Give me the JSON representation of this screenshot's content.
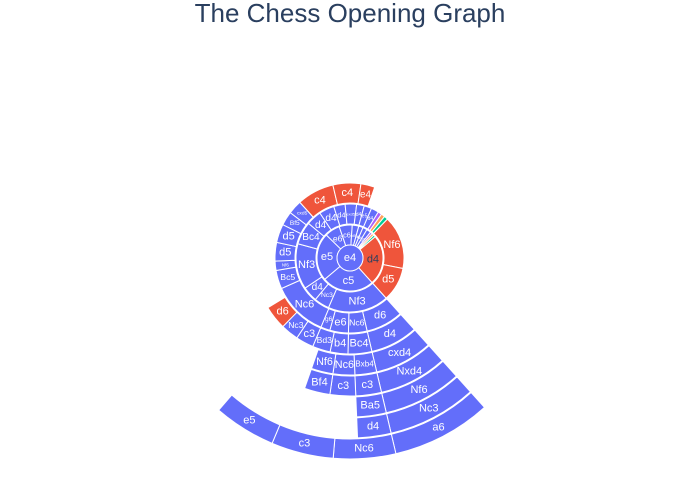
{
  "title": "The Chess Opening Graph",
  "chart_data": {
    "type": "sunburst",
    "title": "The Chess Opening Graph",
    "colors": {
      "white_first": "#636efa",
      "black_first": "#ef553b",
      "teal": "#00cc96",
      "orange": "#ffa15a",
      "cyan": "#19d3f3",
      "purple": "#ab63fa"
    },
    "root": "e4",
    "rings": [
      [
        {
          "label": "c5",
          "value": 24,
          "color": "white_first"
        },
        {
          "label": "e5",
          "value": 22,
          "color": "white_first"
        },
        {
          "label": "e6",
          "value": 7,
          "color": "white_first"
        },
        {
          "label": "c6",
          "value": 6,
          "color": "white_first"
        },
        {
          "label": "d5",
          "value": 3,
          "color": "white_first"
        },
        {
          "label": "d6",
          "value": 2,
          "color": "white_first"
        },
        {
          "label": "Nf6",
          "value": 2,
          "color": "white_first"
        },
        {
          "label": "g6",
          "value": 2,
          "color": "white_first"
        },
        {
          "label": "",
          "value": 1,
          "color": "purple"
        },
        {
          "label": "",
          "value": 1,
          "color": "orange"
        },
        {
          "label": "",
          "value": 1,
          "color": "teal"
        },
        {
          "label": "d4",
          "value": 23,
          "color": "black_first"
        }
      ],
      [
        {
          "label": "Nf3",
          "value": 16,
          "color": "white_first"
        },
        {
          "label": "Nc3",
          "value": 4,
          "color": "white_first"
        },
        {
          "label": "d4",
          "value": 4,
          "color": "white_first"
        },
        {
          "label": "Nf3",
          "value": 12,
          "color": "white_first"
        },
        {
          "label": "Bc4",
          "value": 6,
          "color": "white_first"
        },
        {
          "label": "d4",
          "value": 4,
          "color": "white_first"
        },
        {
          "label": "d4",
          "value": 4,
          "color": "white_first"
        },
        {
          "label": "d4",
          "value": 3,
          "color": "white_first"
        },
        {
          "label": "exd5",
          "value": 3,
          "color": "white_first"
        },
        {
          "label": "d4",
          "value": 2,
          "color": "white_first"
        },
        {
          "label": "e5",
          "value": 2,
          "color": "white_first"
        },
        {
          "label": "d4",
          "value": 2,
          "color": "white_first"
        },
        {
          "label": "",
          "value": 1,
          "color": "purple"
        },
        {
          "label": "",
          "value": 1,
          "color": "orange"
        },
        {
          "label": "",
          "value": 1,
          "color": "teal"
        },
        {
          "label": "Nf6",
          "value": 14,
          "color": "black_first"
        },
        {
          "label": "d5",
          "value": 9,
          "color": "black_first"
        }
      ],
      [
        {
          "label": "d6",
          "value": 8,
          "color": "white_first"
        },
        {
          "label": "Nc6",
          "value": 4,
          "color": "white_first"
        },
        {
          "label": "e6",
          "value": 4,
          "color": "white_first"
        },
        {
          "label": "g6",
          "value": 2,
          "color": "white_first"
        },
        {
          "label": "Nc6",
          "value": 12,
          "color": "white_first"
        },
        {
          "label": "Bc5",
          "value": 4,
          "color": "white_first"
        },
        {
          "label": "Nf6",
          "value": 2,
          "color": "white_first"
        },
        {
          "label": "d5",
          "value": 4,
          "color": "white_first"
        },
        {
          "label": "d5",
          "value": 4,
          "color": "white_first"
        },
        {
          "label": "Bf5",
          "value": 3,
          "color": "white_first"
        },
        {
          "label": "cxd5",
          "value": 3,
          "color": "white_first"
        },
        {
          "label": "c4",
          "value": 8,
          "color": "black_first"
        },
        {
          "label": "c4",
          "value": 6,
          "color": "black_first"
        },
        {
          "label": "e4",
          "value": 3,
          "color": "black_first"
        }
      ],
      [
        {
          "label": "d4",
          "value": 8,
          "color": "white_first"
        },
        {
          "label": "Bc4",
          "value": 4,
          "color": "white_first"
        },
        {
          "label": "b4",
          "value": 3,
          "color": "white_first"
        },
        {
          "label": "Bd3",
          "value": 3,
          "color": "white_first"
        },
        {
          "label": "c3",
          "value": 3,
          "color": "white_first"
        },
        {
          "label": "Nc3",
          "value": 3,
          "color": "white_first"
        },
        {
          "label": "d6",
          "value": 4,
          "color": "black_first"
        }
      ],
      [
        {
          "label": "cxd4",
          "value": 8,
          "color": "white_first"
        },
        {
          "label": "Bxb4",
          "value": 3,
          "color": "white_first"
        },
        {
          "label": "Nc6",
          "value": 3,
          "color": "white_first"
        },
        {
          "label": "Nf6",
          "value": 3,
          "color": "white_first"
        }
      ],
      [
        {
          "label": "Nxd4",
          "value": 8,
          "color": "white_first"
        },
        {
          "label": "c3",
          "value": 3,
          "color": "white_first"
        },
        {
          "label": "c3",
          "value": 3,
          "color": "white_first"
        },
        {
          "label": "Bf4",
          "value": 3,
          "color": "white_first"
        }
      ],
      [
        {
          "label": "Nf6",
          "value": 8,
          "color": "white_first"
        },
        {
          "label": "Ba5",
          "value": 3,
          "color": "white_first"
        }
      ],
      [
        {
          "label": "Nc3",
          "value": 8,
          "color": "white_first"
        },
        {
          "label": "d4",
          "value": 3,
          "color": "white_first"
        }
      ],
      [
        {
          "label": "a6",
          "value": 8,
          "color": "white_first"
        },
        {
          "label": "Nc6",
          "value": 5,
          "color": "white_first"
        },
        {
          "label": "c3",
          "value": 5,
          "color": "white_first"
        },
        {
          "label": "e5",
          "value": 5,
          "color": "white_first"
        }
      ]
    ]
  }
}
